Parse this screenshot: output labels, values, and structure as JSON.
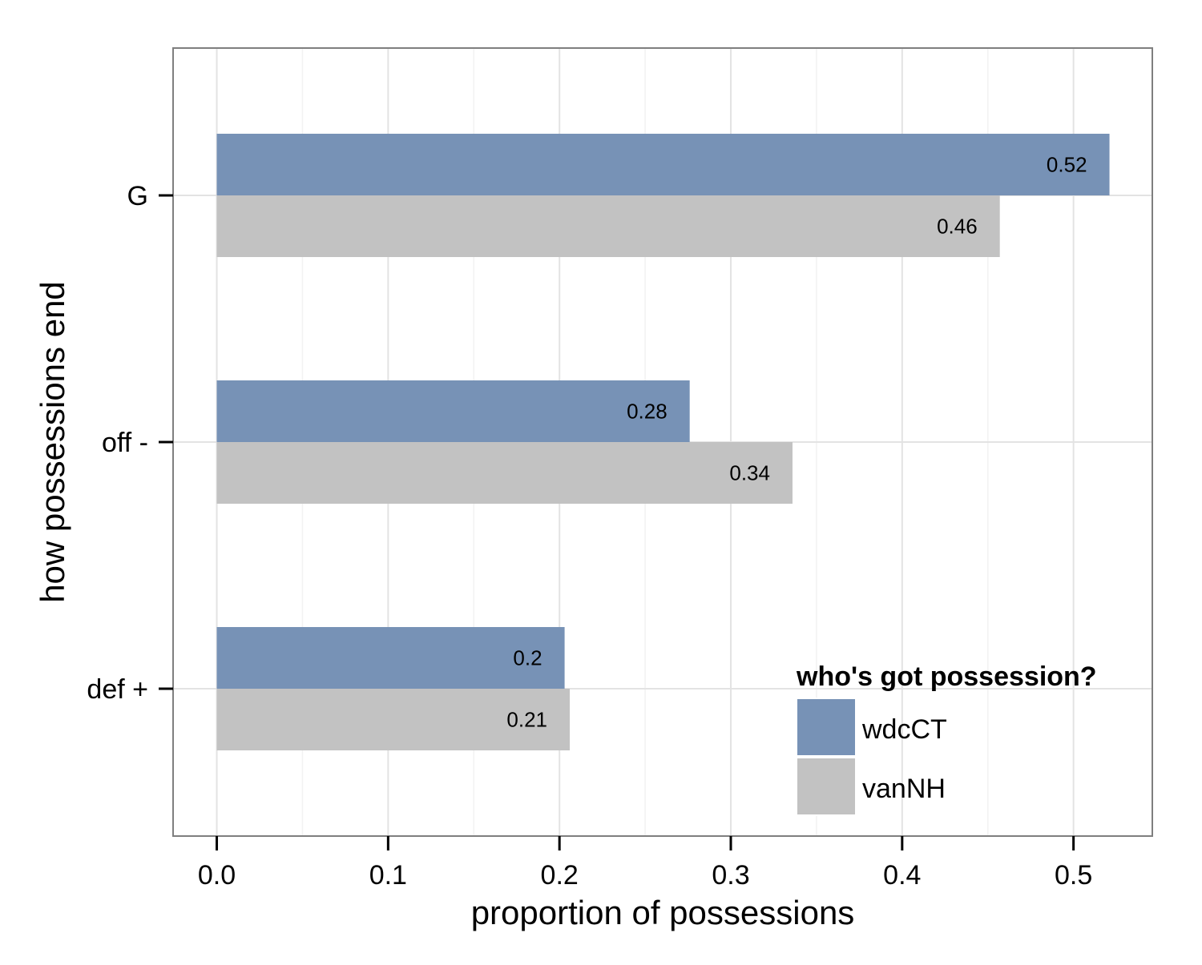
{
  "chart_data": {
    "type": "bar",
    "orientation": "horizontal",
    "categories": [
      "G",
      "off -",
      "def +"
    ],
    "series": [
      {
        "name": "wdcCT",
        "color": "#7792b6",
        "values": [
          0.52,
          0.28,
          0.2
        ],
        "value_labels": [
          "0.52",
          "0.28",
          "0.2"
        ],
        "bar_values": [
          0.521,
          0.276,
          0.203
        ]
      },
      {
        "name": "vanNH",
        "color": "#c2c2c2",
        "values": [
          0.46,
          0.34,
          0.21
        ],
        "value_labels": [
          "0.46",
          "0.34",
          "0.21"
        ],
        "bar_values": [
          0.457,
          0.336,
          0.206
        ]
      }
    ],
    "xlabel": "proportion of possessions",
    "ylabel": "how possessions end",
    "xlim": [
      -0.0255,
      0.546
    ],
    "xticks": [
      0.0,
      0.1,
      0.2,
      0.3,
      0.4,
      0.5
    ],
    "xtick_labels": [
      "0.0",
      "0.1",
      "0.2",
      "0.3",
      "0.4",
      "0.5"
    ],
    "grid": true,
    "legend": {
      "title": "who's got possession?",
      "position": "bottom-right"
    }
  }
}
